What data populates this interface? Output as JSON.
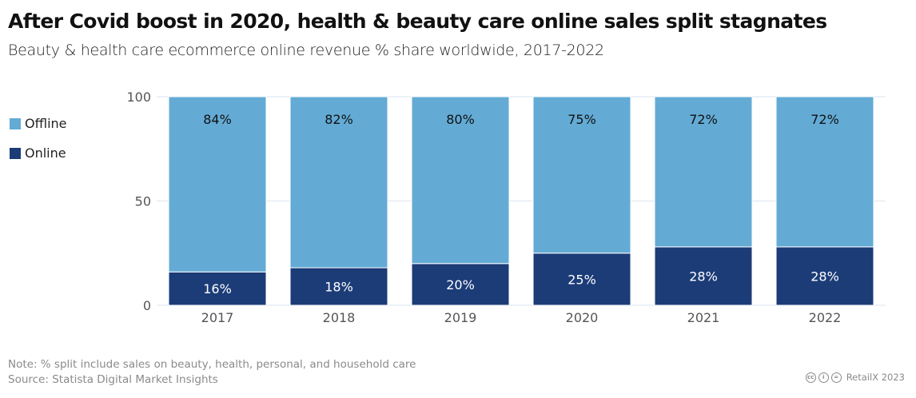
{
  "title": "After Covid boost in 2020, health & beauty care online sales split stagnates",
  "subtitle": "Beauty & health care ecommerce online revenue % share worldwide, 2017-2022",
  "legend": [
    {
      "label": "Offline",
      "color": "#63abd5"
    },
    {
      "label": "Online",
      "color": "#1c3c78"
    }
  ],
  "note": "Note: % split include sales on beauty, health, personal, and household care",
  "source": "Source: Statista Digital Market Insights",
  "credit": {
    "icons": [
      "cc-icon",
      "by-icon",
      "nd-icon"
    ],
    "text": "RetailX 2023"
  },
  "chart_data": {
    "type": "bar",
    "stacked": true,
    "categories": [
      "2017",
      "2018",
      "2019",
      "2020",
      "2021",
      "2022"
    ],
    "series": [
      {
        "name": "Online",
        "color": "#1c3c78",
        "values": [
          16,
          18,
          20,
          25,
          28,
          28
        ],
        "labels": [
          "16%",
          "18%",
          "20%",
          "25%",
          "28%",
          "28%"
        ]
      },
      {
        "name": "Offline",
        "color": "#63abd5",
        "values": [
          84,
          82,
          80,
          75,
          72,
          72
        ],
        "labels": [
          "84%",
          "82%",
          "80%",
          "75%",
          "72%",
          "72%"
        ]
      }
    ],
    "title": "After Covid boost in 2020, health & beauty care online sales split stagnates",
    "xlabel": "",
    "ylabel": "",
    "ylim": [
      0,
      100
    ],
    "yticks": [
      0,
      50,
      100
    ],
    "grid": true,
    "legend_position": "left"
  }
}
